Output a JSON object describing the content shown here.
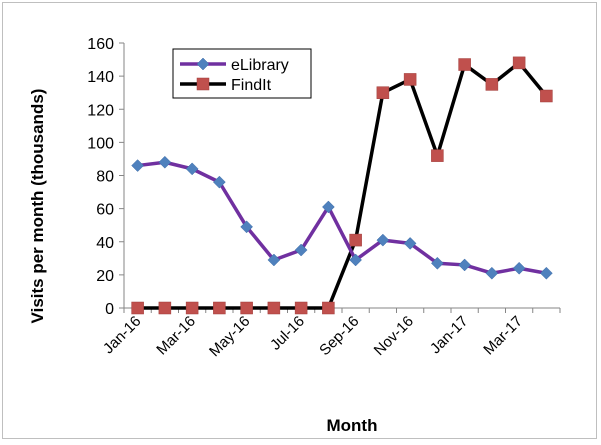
{
  "chart_data": {
    "type": "line",
    "xlabel": "Month",
    "ylabel": "Visits per month (thousands)",
    "ylim": [
      0,
      160
    ],
    "yticks": [
      0,
      20,
      40,
      60,
      80,
      100,
      120,
      140,
      160
    ],
    "grid": false,
    "legend": "top-left",
    "categories": [
      "Jan-16",
      "Feb-16",
      "Mar-16",
      "Apr-16",
      "May-16",
      "Jun-16",
      "Jul-16",
      "Aug-16",
      "Sep-16",
      "Oct-16",
      "Nov-16",
      "Dec-16",
      "Jan-17",
      "Feb-17",
      "Mar-17",
      "Apr-17"
    ],
    "tick_labels": [
      "Jan-16",
      "",
      "Mar-16",
      "",
      "May-16",
      "",
      "Jul-16",
      "",
      "Sep-16",
      "",
      "Nov-16",
      "",
      "Jan-17",
      "",
      "Mar-17",
      ""
    ],
    "series": [
      {
        "name": "eLibrary",
        "line_color": "#7030a0",
        "marker_color": "#4f81bd",
        "marker": "diamond",
        "values": [
          86,
          88,
          84,
          76,
          49,
          29,
          35,
          61,
          29,
          41,
          39,
          27,
          26,
          21,
          24,
          21
        ]
      },
      {
        "name": "FindIt",
        "line_color": "#000000",
        "marker_color": "#c0504d",
        "marker": "square",
        "values": [
          0,
          0,
          0,
          0,
          0,
          0,
          0,
          0,
          41,
          130,
          138,
          92,
          147,
          135,
          148,
          128
        ]
      }
    ]
  }
}
